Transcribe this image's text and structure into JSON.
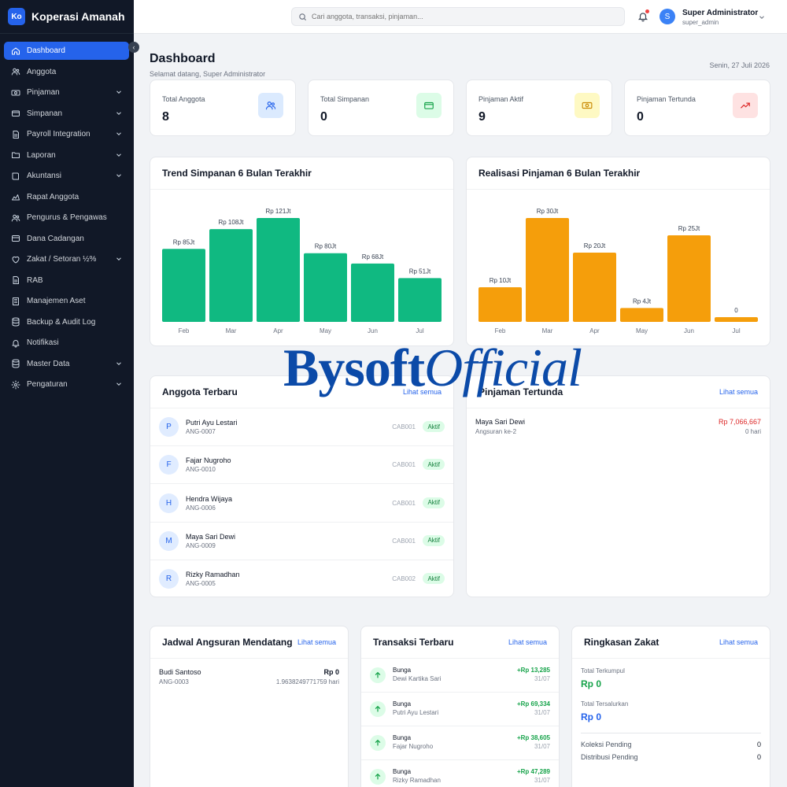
{
  "brand": {
    "logo": "Ko",
    "name": "Koperasi Amanah"
  },
  "sidebar": {
    "items": [
      {
        "label": "Dashboard",
        "icon": "home-icon",
        "active": true,
        "expandable": false
      },
      {
        "label": "Anggota",
        "icon": "users-icon",
        "expandable": false
      },
      {
        "label": "Pinjaman",
        "icon": "money-icon",
        "expandable": true
      },
      {
        "label": "Simpanan",
        "icon": "wallet-icon",
        "expandable": true
      },
      {
        "label": "Payroll Integration",
        "icon": "doc-icon",
        "expandable": true
      },
      {
        "label": "Laporan",
        "icon": "folder-icon",
        "expandable": true
      },
      {
        "label": "Akuntansi",
        "icon": "book-icon",
        "expandable": true
      },
      {
        "label": "Rapat Anggota",
        "icon": "meeting-icon",
        "expandable": false
      },
      {
        "label": "Pengurus & Pengawas",
        "icon": "users-icon",
        "expandable": false
      },
      {
        "label": "Dana Cadangan",
        "icon": "card-icon",
        "expandable": false
      },
      {
        "label": "Zakat / Setoran ½%",
        "icon": "heart-icon",
        "expandable": true
      },
      {
        "label": "RAB",
        "icon": "doc-icon",
        "expandable": false
      },
      {
        "label": "Manajemen Aset",
        "icon": "building-icon",
        "expandable": false
      },
      {
        "label": "Backup & Audit Log",
        "icon": "database-icon",
        "expandable": false
      },
      {
        "label": "Notifikasi",
        "icon": "bell-icon",
        "expandable": false
      },
      {
        "label": "Master Data",
        "icon": "database-icon",
        "expandable": true
      },
      {
        "label": "Pengaturan",
        "icon": "gear-icon",
        "expandable": true
      }
    ]
  },
  "topbar": {
    "search_placeholder": "Cari anggota, transaksi, pinjaman...",
    "user": {
      "initial": "S",
      "name": "Super Administrator",
      "role": "super_admin"
    }
  },
  "header": {
    "title": "Dashboard",
    "subtitle": "Selamat datang, Super Administrator",
    "date": "Senin, 27 Juli 2026"
  },
  "stats": [
    {
      "label": "Total Anggota",
      "value": "8",
      "icon": "users-icon",
      "color": "#dbeafe",
      "iconColor": "#2563eb"
    },
    {
      "label": "Total Simpanan",
      "value": "0",
      "icon": "wallet-icon",
      "color": "#dcfce7",
      "iconColor": "#16a34a"
    },
    {
      "label": "Pinjaman Aktif",
      "value": "9",
      "icon": "money-icon",
      "color": "#fef9c3",
      "iconColor": "#ca8a04"
    },
    {
      "label": "Pinjaman Tertunda",
      "value": "0",
      "icon": "trend-up-icon",
      "color": "#fee2e2",
      "iconColor": "#dc2626"
    }
  ],
  "charts": {
    "savings_title": "Trend Simpanan 6 Bulan Terakhir",
    "loans_title": "Realisasi Pinjaman 6 Bulan Terakhir"
  },
  "chart_data": [
    {
      "type": "bar",
      "title": "Trend Simpanan 6 Bulan Terakhir",
      "categories": [
        "Feb",
        "Mar",
        "Apr",
        "May",
        "Jun",
        "Jul"
      ],
      "values": [
        85,
        108,
        121,
        80,
        68,
        51
      ],
      "labels": [
        "Rp 85Jt",
        "Rp 108Jt",
        "Rp 121Jt",
        "Rp 80Jt",
        "Rp 68Jt",
        "Rp 51Jt"
      ],
      "color": "#10b981",
      "ylim": [
        0,
        121
      ]
    },
    {
      "type": "bar",
      "title": "Realisasi Pinjaman 6 Bulan Terakhir",
      "categories": [
        "Feb",
        "Mar",
        "Apr",
        "May",
        "Jun",
        "Jul"
      ],
      "values": [
        10,
        30,
        20,
        4,
        25,
        0
      ],
      "labels": [
        "Rp 10Jt",
        "Rp 30Jt",
        "Rp 20Jt",
        "Rp 4Jt",
        "Rp 25Jt",
        "0"
      ],
      "color": "#f59e0b",
      "ylim": [
        0,
        30
      ]
    }
  ],
  "members": {
    "title": "Anggota Terbaru",
    "link": "Lihat semua",
    "rows": [
      {
        "initial": "P",
        "name": "Putri Ayu Lestari",
        "id": "ANG-0007",
        "branch": "CAB001",
        "status": "Aktif"
      },
      {
        "initial": "F",
        "name": "Fajar Nugroho",
        "id": "ANG-0010",
        "branch": "CAB001",
        "status": "Aktif"
      },
      {
        "initial": "H",
        "name": "Hendra Wijaya",
        "id": "ANG-0006",
        "branch": "CAB001",
        "status": "Aktif"
      },
      {
        "initial": "M",
        "name": "Maya Sari Dewi",
        "id": "ANG-0009",
        "branch": "CAB001",
        "status": "Aktif"
      },
      {
        "initial": "R",
        "name": "Rizky Ramadhan",
        "id": "ANG-0005",
        "branch": "CAB002",
        "status": "Aktif"
      }
    ]
  },
  "pending_loans": {
    "title": "Pinjaman Tertunda",
    "link": "Lihat semua",
    "rows": [
      {
        "name": "Maya Sari Dewi",
        "sub": "Angsuran ke-2",
        "amount": "Rp 7,066,667",
        "days": "0 hari"
      }
    ]
  },
  "schedule": {
    "title": "Jadwal Angsuran Mendatang",
    "link": "Lihat semua",
    "rows": [
      {
        "name": "Budi Santoso",
        "id": "ANG-0003",
        "amount": "Rp 0",
        "days": "1.9638249771759 hari"
      }
    ]
  },
  "transactions": {
    "title": "Transaksi Terbaru",
    "link": "Lihat semua",
    "rows": [
      {
        "type": "Bunga",
        "name": "Dewi Kartika Sari",
        "amount": "+Rp 13,285",
        "date": "31/07"
      },
      {
        "type": "Bunga",
        "name": "Putri Ayu Lestari",
        "amount": "+Rp 69,334",
        "date": "31/07"
      },
      {
        "type": "Bunga",
        "name": "Fajar Nugroho",
        "amount": "+Rp 38,605",
        "date": "31/07"
      },
      {
        "type": "Bunga",
        "name": "Rizky Ramadhan",
        "amount": "+Rp 47,289",
        "date": "31/07"
      }
    ]
  },
  "zakat": {
    "title": "Ringkasan Zakat",
    "link": "Lihat semua",
    "collected_label": "Total Terkumpul",
    "collected": "Rp 0",
    "distributed_label": "Total Tersalurkan",
    "distributed": "Rp 0",
    "pending_collection_label": "Koleksi Pending",
    "pending_collection": "0",
    "pending_distribution_label": "Distribusi Pending",
    "pending_distribution": "0"
  },
  "watermark": {
    "bold": "Bysoft",
    "italic": "Official"
  }
}
